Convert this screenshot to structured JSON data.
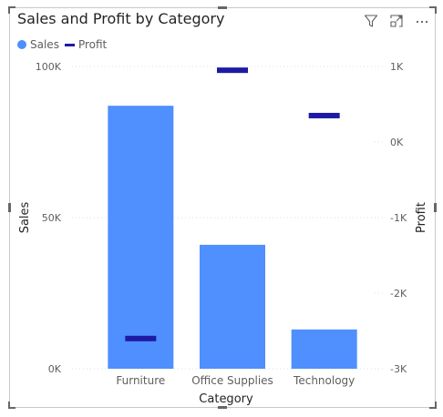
{
  "visual": {
    "title": "Sales and Profit by Category",
    "toolbar": [
      {
        "name": "filter-icon"
      },
      {
        "name": "focus-mode-icon"
      },
      {
        "name": "more-options-icon"
      }
    ]
  },
  "legend": {
    "sales_label": "Sales",
    "profit_label": "Profit"
  },
  "colors": {
    "sales": "#4f8ffe",
    "profit": "#1e1aa6",
    "tick": "#605e5c",
    "grid": "#e1dfdd"
  },
  "chart_data": {
    "type": "bar",
    "categories": [
      "Furniture",
      "Office Supplies",
      "Technology"
    ],
    "series": [
      {
        "name": "Sales",
        "axis": "left",
        "style": "bar",
        "values": [
          87000,
          41000,
          13000
        ]
      },
      {
        "name": "Profit",
        "axis": "right",
        "style": "marker",
        "values": [
          -2600,
          950,
          350
        ]
      }
    ],
    "xlabel": "Category",
    "ylabel": "Sales",
    "y2label": "Profit",
    "ylim": [
      0,
      100000
    ],
    "y2lim": [
      -3000,
      1000
    ],
    "yticks": [
      {
        "v": 0,
        "label": "0K"
      },
      {
        "v": 50000,
        "label": "50K"
      },
      {
        "v": 100000,
        "label": "100K"
      }
    ],
    "y2ticks": [
      {
        "v": -3000,
        "label": "-3K"
      },
      {
        "v": -2000,
        "label": "-2K"
      },
      {
        "v": -1000,
        "label": "-1K"
      },
      {
        "v": 0,
        "label": "0K"
      },
      {
        "v": 1000,
        "label": "1K"
      }
    ],
    "grid": true,
    "legend": "top-left"
  }
}
